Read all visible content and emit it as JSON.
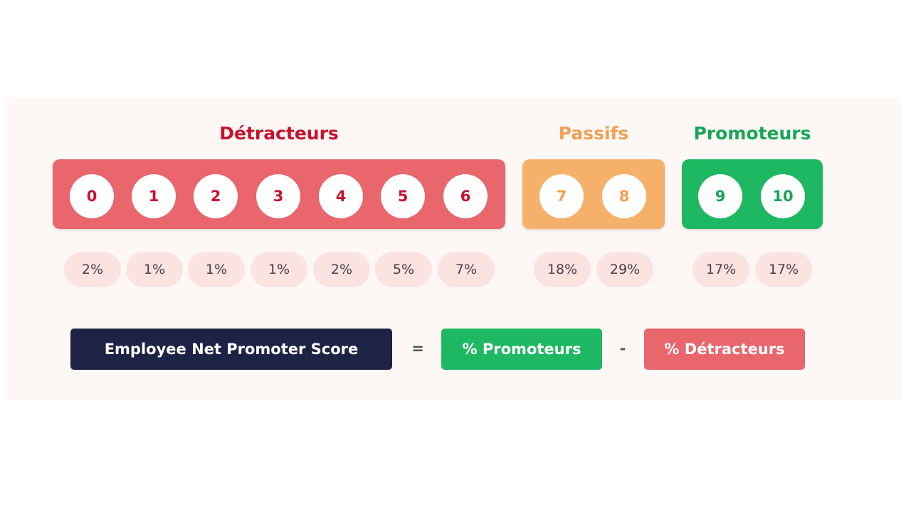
{
  "colors": {
    "detractors": "#e8666c",
    "detractors_text": "#c8102e",
    "passives": "#f5b16a",
    "passives_text": "#f2a054",
    "promoters": "#1fb862",
    "promoters_text": "#19a557",
    "navy": "#1e2244"
  },
  "groups": {
    "detractors": {
      "title": "Détracteurs",
      "scores": [
        "0",
        "1",
        "2",
        "3",
        "4",
        "5",
        "6"
      ],
      "percents": [
        "2%",
        "1%",
        "1%",
        "1%",
        "2%",
        "5%",
        "7%"
      ]
    },
    "passives": {
      "title": "Passifs",
      "scores": [
        "7",
        "8"
      ],
      "percents": [
        "18%",
        "29%"
      ]
    },
    "promoters": {
      "title": "Promoteurs",
      "scores": [
        "9",
        "10"
      ],
      "percents": [
        "17%",
        "17%"
      ]
    }
  },
  "formula": {
    "label": "Employee Net Promoter Score",
    "equals": "=",
    "promoters": "% Promoteurs",
    "minus": "-",
    "detractors": "% Détracteurs"
  }
}
